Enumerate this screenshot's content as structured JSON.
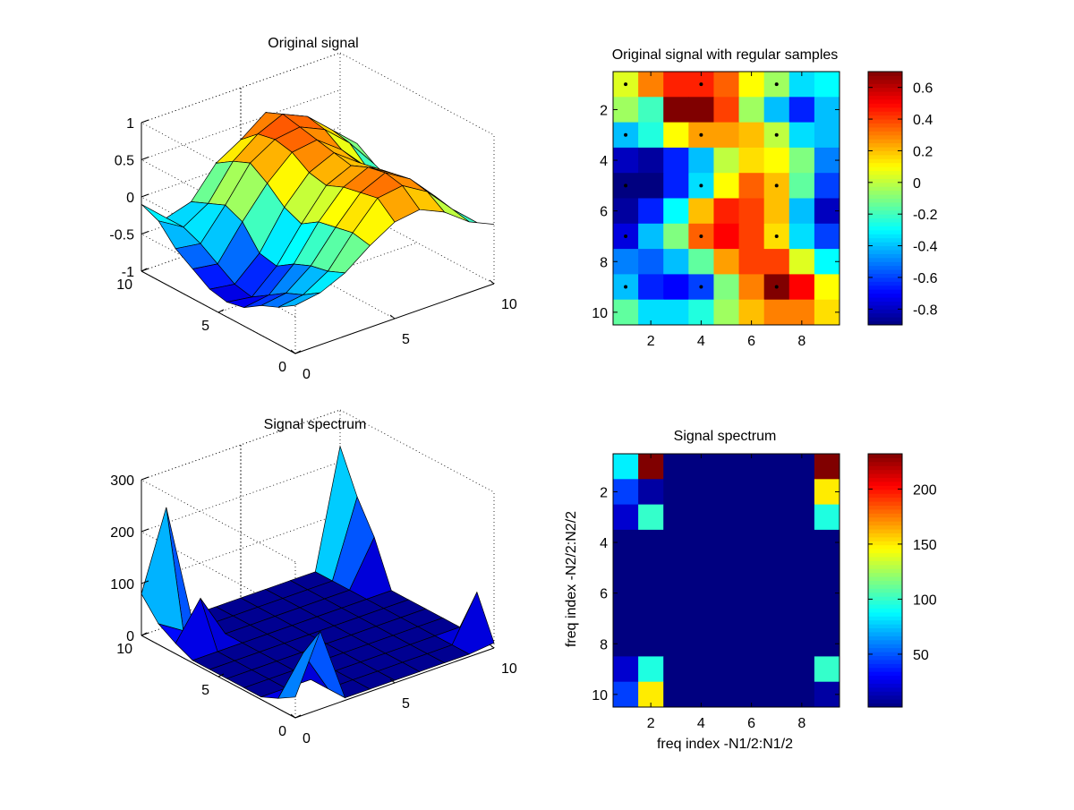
{
  "chart_data": [
    {
      "type": "surface3d",
      "title": "Original signal",
      "xlim": [
        0,
        10
      ],
      "ylim": [
        0,
        10
      ],
      "zlim": [
        -1,
        1
      ],
      "xticks": [
        "0",
        "5",
        "10"
      ],
      "yticks": [
        "0",
        "5",
        "10"
      ],
      "zticks": [
        "-1",
        "-0.5",
        "0",
        "0.5",
        "1"
      ],
      "grid": true,
      "z": [
        [
          -0.1,
          -0.4,
          -0.3,
          0.1,
          0.3,
          0.55,
          0.4,
          0.1,
          -0.2
        ],
        [
          -0.2,
          -0.4,
          -0.2,
          0.25,
          0.5,
          0.65,
          0.5,
          0.2,
          -0.1
        ],
        [
          -0.45,
          -0.5,
          -0.1,
          0.35,
          0.55,
          0.6,
          0.45,
          0.15,
          -0.25
        ],
        [
          -0.6,
          -0.65,
          -0.2,
          0.2,
          0.5,
          0.55,
          0.3,
          -0.05,
          -0.35
        ],
        [
          -0.75,
          -0.8,
          -0.5,
          0.0,
          0.35,
          0.5,
          0.25,
          -0.2,
          -0.45
        ],
        [
          -0.8,
          -0.85,
          -0.55,
          -0.1,
          0.3,
          0.45,
          0.3,
          -0.1,
          -0.5
        ],
        [
          -0.75,
          -0.7,
          -0.4,
          0.05,
          0.4,
          0.55,
          0.35,
          -0.05,
          -0.4
        ],
        [
          -0.6,
          -0.55,
          -0.3,
          0.1,
          0.45,
          0.6,
          0.4,
          0.05,
          -0.35
        ],
        [
          -0.5,
          -0.45,
          -0.25,
          0.15,
          0.5,
          0.55,
          0.35,
          0.0,
          -0.3
        ],
        [
          -0.35,
          -0.3,
          -0.15,
          0.1,
          0.3,
          0.35,
          0.2,
          -0.05,
          -0.2
        ]
      ]
    },
    {
      "type": "heatmap",
      "title": "Original signal with regular samples",
      "xticks": [
        "2",
        "4",
        "6",
        "8"
      ],
      "yticks": [
        "2",
        "4",
        "6",
        "8",
        "10"
      ],
      "colorbar_ticks": [
        "0.6",
        "0.4",
        "0.2",
        "0",
        "-0.2",
        "-0.4",
        "-0.6",
        "-0.8"
      ],
      "clim": [
        -0.9,
        0.7
      ],
      "values": [
        [
          0.05,
          0.3,
          0.45,
          0.45,
          0.35,
          0.1,
          -0.05,
          -0.35,
          -0.3
        ],
        [
          -0.05,
          -0.2,
          0.7,
          0.7,
          0.4,
          -0.05,
          -0.4,
          -0.65,
          -0.4
        ],
        [
          -0.4,
          -0.25,
          0.1,
          0.25,
          0.25,
          0.2,
          0.0,
          -0.35,
          -0.4
        ],
        [
          -0.8,
          -0.85,
          -0.65,
          -0.4,
          0.0,
          0.15,
          0.1,
          -0.1,
          -0.5
        ],
        [
          -0.9,
          -0.9,
          -0.65,
          -0.35,
          0.1,
          0.35,
          0.2,
          -0.15,
          -0.6
        ],
        [
          -0.85,
          -0.65,
          -0.3,
          0.2,
          0.45,
          0.4,
          0.2,
          -0.4,
          -0.8
        ],
        [
          -0.75,
          -0.4,
          -0.1,
          0.35,
          0.5,
          0.4,
          0.15,
          -0.35,
          -0.6
        ],
        [
          -0.5,
          -0.55,
          -0.4,
          -0.15,
          0.25,
          0.4,
          0.4,
          0.05,
          -0.3
        ],
        [
          -0.4,
          -0.65,
          -0.7,
          -0.6,
          -0.1,
          0.3,
          0.7,
          0.5,
          0.1
        ],
        [
          -0.15,
          -0.35,
          -0.35,
          -0.25,
          -0.05,
          0.2,
          0.3,
          0.3,
          0.15
        ]
      ],
      "samples": [
        [
          1,
          1
        ],
        [
          4,
          1
        ],
        [
          7,
          1
        ],
        [
          1,
          3
        ],
        [
          4,
          3
        ],
        [
          7,
          3
        ],
        [
          1,
          5
        ],
        [
          4,
          5
        ],
        [
          7,
          5
        ],
        [
          1,
          7
        ],
        [
          4,
          7
        ],
        [
          7,
          7
        ],
        [
          1,
          9
        ],
        [
          4,
          9
        ],
        [
          7,
          9
        ]
      ]
    },
    {
      "type": "surface3d",
      "title": "Signal spectrum",
      "xlim": [
        0,
        10
      ],
      "ylim": [
        0,
        10
      ],
      "zlim": [
        0,
        300
      ],
      "xticks": [
        "0",
        "5",
        "10"
      ],
      "yticks": [
        "0",
        "5",
        "10"
      ],
      "zticks": [
        "0",
        "100",
        "200",
        "300"
      ],
      "grid": true,
      "z": [
        [
          80,
          230,
          5,
          5,
          5,
          5,
          5,
          5,
          230
        ],
        [
          40,
          10,
          5,
          5,
          5,
          5,
          5,
          5,
          150
        ],
        [
          20,
          90,
          5,
          5,
          5,
          5,
          5,
          5,
          90
        ],
        [
          5,
          5,
          5,
          5,
          5,
          5,
          5,
          5,
          5
        ],
        [
          5,
          5,
          5,
          5,
          5,
          5,
          5,
          5,
          5
        ],
        [
          5,
          5,
          5,
          5,
          5,
          5,
          5,
          5,
          5
        ],
        [
          5,
          5,
          5,
          5,
          5,
          5,
          5,
          5,
          5
        ],
        [
          5,
          5,
          5,
          5,
          5,
          5,
          5,
          5,
          5
        ],
        [
          20,
          90,
          5,
          5,
          5,
          5,
          5,
          5,
          90
        ],
        [
          40,
          150,
          5,
          5,
          5,
          5,
          5,
          5,
          10
        ]
      ]
    },
    {
      "type": "heatmap",
      "title": "Signal spectrum",
      "xlabel": "freq index -N1/2:N1/2",
      "ylabel": "freq index -N2/2:N2/2",
      "xticks": [
        "2",
        "4",
        "6",
        "8"
      ],
      "yticks": [
        "2",
        "4",
        "6",
        "8",
        "10"
      ],
      "colorbar_ticks": [
        "200",
        "150",
        "100",
        "50"
      ],
      "clim": [
        2,
        232
      ],
      "values": [
        [
          85,
          232,
          2,
          2,
          2,
          2,
          2,
          2,
          232
        ],
        [
          45,
          10,
          2,
          2,
          2,
          2,
          2,
          2,
          150
        ],
        [
          20,
          100,
          2,
          2,
          2,
          2,
          2,
          2,
          95
        ],
        [
          2,
          2,
          2,
          2,
          2,
          2,
          2,
          2,
          2
        ],
        [
          2,
          2,
          2,
          2,
          2,
          2,
          2,
          2,
          2
        ],
        [
          2,
          2,
          2,
          2,
          2,
          2,
          2,
          2,
          2
        ],
        [
          2,
          2,
          2,
          2,
          2,
          2,
          2,
          2,
          2
        ],
        [
          2,
          2,
          2,
          2,
          2,
          2,
          2,
          2,
          2
        ],
        [
          20,
          95,
          2,
          2,
          2,
          2,
          2,
          2,
          100
        ],
        [
          45,
          150,
          2,
          2,
          2,
          2,
          2,
          2,
          10
        ]
      ]
    }
  ]
}
